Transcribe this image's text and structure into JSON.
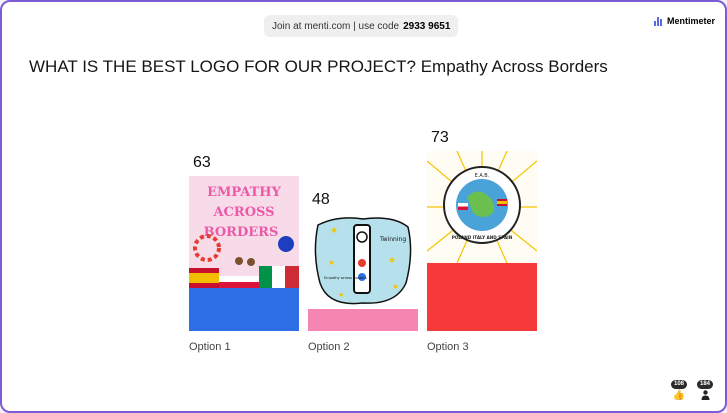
{
  "header": {
    "join_text": "Join at menti.com | use code",
    "code": "2933 9651",
    "brand": "Mentimeter",
    "brand_color": "#5769e7"
  },
  "question": "WHAT IS THE BEST LOGO FOR OUR PROJECT? Empathy Across Borders",
  "chart_data": {
    "type": "bar",
    "categories": [
      "Option 1",
      "Option 2",
      "Option 3"
    ],
    "values": [
      63,
      48,
      73
    ],
    "colors": [
      "#2f6fe6",
      "#f585b1",
      "#f63a3a"
    ],
    "ylim": [
      0,
      73
    ],
    "title": "WHAT IS THE BEST LOGO FOR OUR PROJECT? Empathy Across Borders",
    "xlabel": "",
    "ylabel": ""
  },
  "logos": {
    "option1": {
      "line1": "EMPATHY",
      "line2": "ACROSS",
      "line3": "BORDERS"
    },
    "option2": {
      "label": "Twinning",
      "caption": "Empathy across Borders"
    },
    "option3": {
      "top": "E.A.B.",
      "bottom": "POLAND ITALY AND SPAIN"
    }
  },
  "reactions": [
    {
      "icon": "thumbs-up-icon",
      "count": "108"
    },
    {
      "icon": "person-icon",
      "count": "184"
    }
  ]
}
